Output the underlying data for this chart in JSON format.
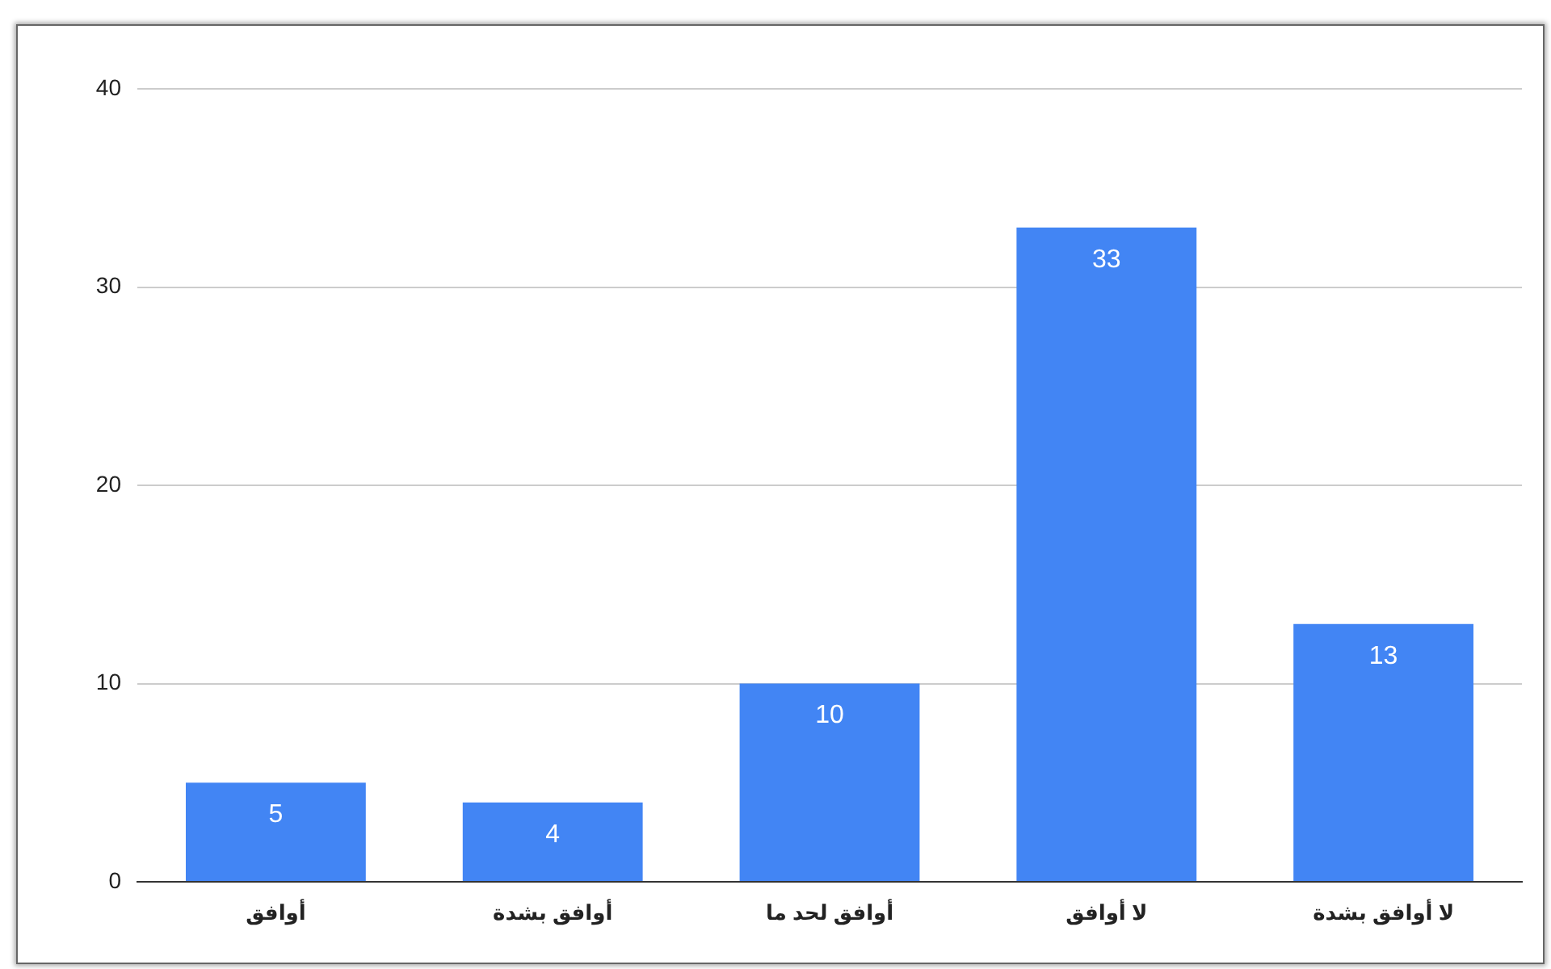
{
  "chart_data": {
    "type": "bar",
    "categories": [
      "أوافق",
      "أوافق بشدة",
      "أوافق لحد ما",
      "لا أوافق",
      "لا أوافق بشدة"
    ],
    "values": [
      5,
      4,
      10,
      33,
      13
    ],
    "color": "#4285f4",
    "ylim": [
      0,
      40
    ],
    "yticks": [
      0,
      10,
      20,
      30,
      40
    ],
    "grid": "y",
    "data_labels": true
  }
}
